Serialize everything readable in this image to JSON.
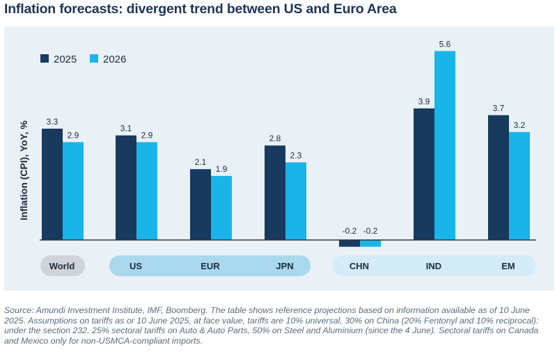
{
  "title": "Inflation forecasts: divergent trend between US and Euro Area",
  "source": "Source: Amundi Investment Institute, IMF, Boomberg. The table shows reference projections based on information available as of 10 June 2025. Assumptions on tariffs as or 10 June 2025, at face value, tariffs are 10% universal, 30% on China (20% Fentonyl and 10% reciprocal): under the section 232, 25% sectoral tariffs on Auto & Auto Parts, 50% on Steel and Aluminium (since the 4 June). Sectoral tariffs on Canada and Mexico only for non-USMCA-compliant imports.",
  "colors": {
    "dark": "#173a5e",
    "light": "#19b4e8",
    "panel": "#e9f1f7",
    "pill_grey": "#d0d4d8",
    "pill_mid": "#a9d8ee",
    "pill_light": "#d4ecf7"
  },
  "chart_data": {
    "type": "bar",
    "title": "Inflation forecasts: divergent trend between US and Euro Area",
    "ylabel": "Inflation (CPI), YoY, %",
    "xlabel": "",
    "categories": [
      "World",
      "US",
      "EUR",
      "JPN",
      "CHN",
      "IND",
      "EM"
    ],
    "groups": [
      {
        "members": [
          "World"
        ],
        "style": "grey"
      },
      {
        "members": [
          "US",
          "EUR",
          "JPN"
        ],
        "style": "mid"
      },
      {
        "members": [
          "CHN",
          "IND",
          "EM"
        ],
        "style": "light"
      }
    ],
    "series": [
      {
        "name": "2025",
        "values": [
          3.3,
          3.1,
          2.1,
          2.8,
          -0.2,
          3.9,
          3.7
        ],
        "labels": [
          "3.3",
          "3.1",
          "2.1",
          "2.8",
          "-0.2",
          "3.9",
          "3.7"
        ]
      },
      {
        "name": "2026",
        "values": [
          2.9,
          2.9,
          1.9,
          2.3,
          -0.2,
          5.6,
          3.2
        ],
        "labels": [
          "2.9",
          "2.9",
          "1.9",
          "2.3",
          "-0.2",
          "5.6",
          "3.2"
        ]
      }
    ],
    "legend": "top-left",
    "grid": false
  }
}
